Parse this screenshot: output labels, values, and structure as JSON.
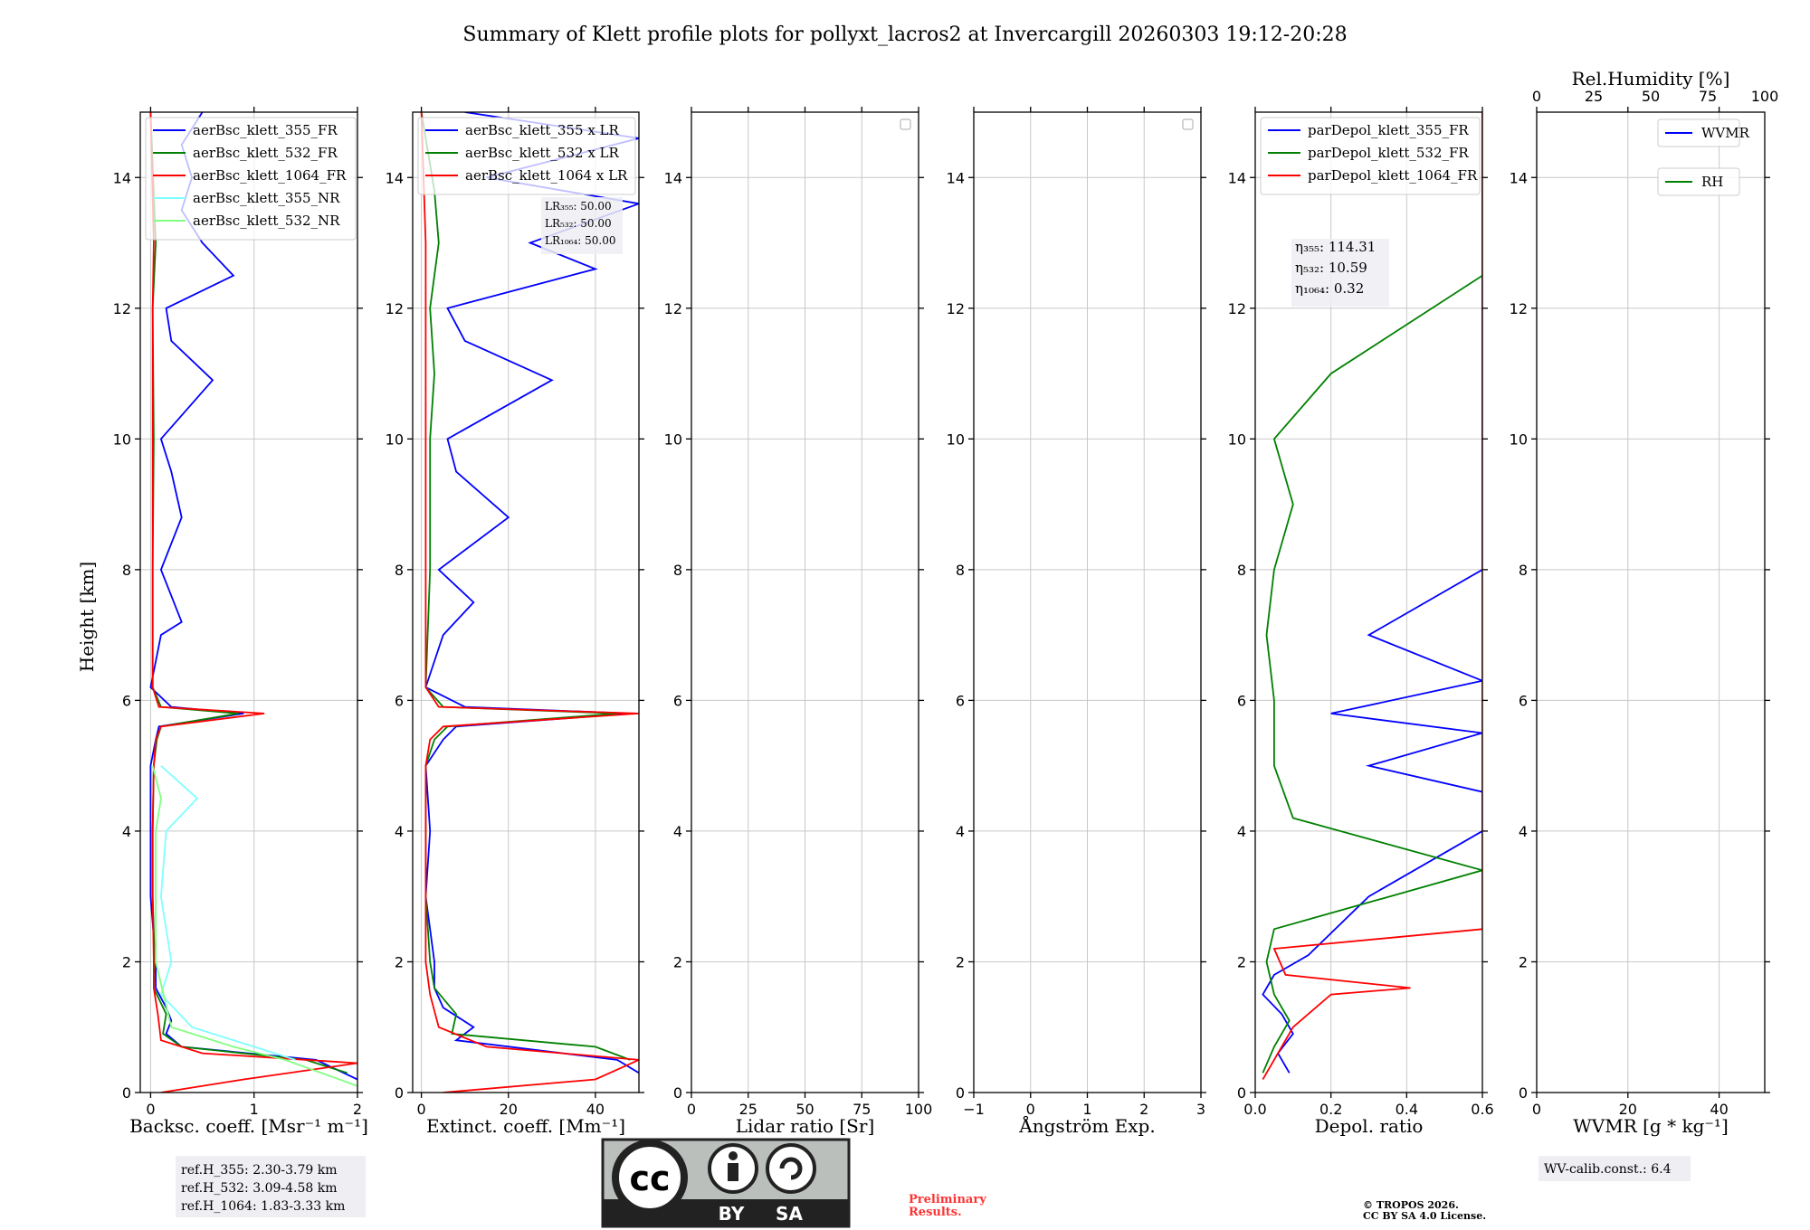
{
  "figure": {
    "title": "Summary of Klett profile plots for pollyxt_lacros2 at Invercargill 20260303 19:12-20:28",
    "ylabel": "Height [km]",
    "ylim": [
      0,
      15
    ],
    "yticks": [
      "0",
      "2",
      "4",
      "6",
      "8",
      "10",
      "12",
      "14"
    ]
  },
  "chart_data": [
    {
      "type": "line",
      "panel": "backscatter",
      "xlabel": "Backsc. coeff. [Msr⁻¹ m⁻¹]",
      "xlim": [
        -0.1,
        2
      ],
      "xticks": [
        {
          "v": 0,
          "t": "0"
        },
        {
          "v": 1,
          "t": "1"
        },
        {
          "v": 2,
          "t": "2"
        }
      ],
      "legend": [
        {
          "label": "aerBsc_klett_355_FR",
          "color": "#0000ff"
        },
        {
          "label": "aerBsc_klett_532_FR",
          "color": "#008000"
        },
        {
          "label": "aerBsc_klett_1064_FR",
          "color": "#ff0000"
        },
        {
          "label": "aerBsc_klett_355_NR",
          "color": "#7fffff"
        },
        {
          "label": "aerBsc_klett_532_NR",
          "color": "#80ff80"
        }
      ],
      "series": [
        {
          "name": "aerBsc_klett_355_FR",
          "color": "#0000ff",
          "h": [
            0.2,
            0.5,
            0.7,
            0.9,
            1.1,
            1.3,
            1.6,
            2.0,
            3.0,
            4.0,
            5.0,
            5.4,
            5.6,
            5.8,
            5.9,
            6.2,
            7.0,
            7.2,
            8.0,
            8.8,
            9.5,
            10.0,
            10.9,
            11.5,
            12.0,
            12.5,
            13.0,
            13.5,
            14.0,
            14.5,
            15.0
          ],
          "x": [
            2.0,
            1.6,
            0.3,
            0.15,
            0.2,
            0.15,
            0.05,
            0.05,
            0.0,
            0.0,
            0.0,
            0.05,
            0.08,
            0.9,
            0.2,
            0.0,
            0.1,
            0.3,
            0.1,
            0.3,
            0.2,
            0.1,
            0.6,
            0.2,
            0.15,
            0.8,
            0.5,
            0.3,
            0.4,
            0.3,
            0.5
          ]
        },
        {
          "name": "aerBsc_klett_532_FR",
          "color": "#008000",
          "h": [
            0.3,
            0.5,
            0.7,
            0.9,
            1.2,
            1.6,
            2.0,
            3.0,
            4.0,
            5.0,
            5.4,
            5.6,
            5.8,
            5.9,
            6.2,
            8.0,
            10.0,
            12.0,
            13.0,
            15.0
          ],
          "x": [
            1.9,
            1.5,
            0.3,
            0.12,
            0.15,
            0.03,
            0.04,
            0.02,
            0.02,
            0.03,
            0.06,
            0.1,
            0.85,
            0.1,
            0.02,
            0.02,
            0.03,
            0.02,
            0.05,
            0.0
          ]
        },
        {
          "name": "aerBsc_klett_1064_FR",
          "color": "#ff0000",
          "h": [
            0.0,
            0.2,
            0.45,
            0.6,
            0.8,
            1.2,
            1.6,
            2.0,
            3.0,
            4.0,
            5.0,
            5.4,
            5.6,
            5.8,
            5.9,
            6.2,
            8.0,
            10.0,
            12.0,
            13.0,
            15.0
          ],
          "x": [
            0.1,
            0.9,
            2.0,
            0.5,
            0.1,
            0.07,
            0.03,
            0.03,
            0.02,
            0.02,
            0.03,
            0.05,
            0.1,
            1.1,
            0.08,
            0.02,
            0.02,
            0.02,
            0.02,
            0.03,
            0.0
          ]
        },
        {
          "name": "aerBsc_klett_355_NR",
          "color": "#7fffff",
          "h": [
            0.5,
            0.7,
            1.0,
            1.5,
            2.0,
            3.0,
            4.0,
            4.5,
            5.0
          ],
          "x": [
            1.4,
            1.0,
            0.4,
            0.1,
            0.2,
            0.1,
            0.15,
            0.45,
            0.1
          ]
        },
        {
          "name": "aerBsc_klett_532_NR",
          "color": "#80ff80",
          "h": [
            0.1,
            0.5,
            0.7,
            1.0,
            2.0,
            3.0,
            4.0,
            4.5,
            5.0
          ],
          "x": [
            2.0,
            1.3,
            0.8,
            0.2,
            0.05,
            0.05,
            0.05,
            0.1,
            0.02
          ]
        }
      ]
    },
    {
      "type": "line",
      "panel": "extinction",
      "xlabel": "Extinct. coeff. [Mm⁻¹]",
      "xlim": [
        -2,
        50
      ],
      "xticks": [
        {
          "v": 0,
          "t": "0"
        },
        {
          "v": 20,
          "t": "20"
        },
        {
          "v": 40,
          "t": "40"
        }
      ],
      "legend": [
        {
          "label": "aerBsc_klett_355 x LR",
          "color": "#0000ff"
        },
        {
          "label": "aerBsc_klett_532 x LR",
          "color": "#008000"
        },
        {
          "label": "aerBsc_klett_1064 x LR",
          "color": "#ff0000"
        }
      ],
      "series": [
        {
          "name": "aerBsc_klett_355 x LR",
          "color": "#0000ff",
          "h": [
            0.3,
            0.5,
            0.8,
            1.0,
            1.3,
            1.6,
            2.0,
            3.0,
            4.0,
            5.0,
            5.4,
            5.6,
            5.8,
            5.9,
            6.2,
            7.0,
            7.5,
            8.0,
            8.8,
            9.5,
            10.0,
            10.9,
            11.5,
            12.0,
            12.6,
            13.0,
            13.6,
            14.0,
            14.6,
            15.0
          ],
          "x": [
            50,
            45,
            8,
            12,
            5,
            3,
            3,
            1,
            2,
            1,
            5,
            8,
            48,
            10,
            1,
            5,
            12,
            4,
            20,
            8,
            6,
            30,
            10,
            6,
            40,
            25,
            50,
            15,
            50,
            10
          ]
        },
        {
          "name": "aerBsc_klett_532 x LR",
          "color": "#008000",
          "h": [
            0.5,
            0.7,
            0.9,
            1.2,
            1.6,
            2.0,
            3.0,
            4.0,
            5.0,
            5.4,
            5.6,
            5.8,
            5.9,
            6.2,
            8.0,
            10.0,
            11.0,
            12.0,
            13.0,
            13.8,
            15.0
          ],
          "x": [
            48,
            40,
            7,
            8,
            3,
            2,
            1,
            1,
            1,
            3,
            6,
            45,
            5,
            1,
            2,
            2,
            3,
            2,
            4,
            3,
            0
          ]
        },
        {
          "name": "aerBsc_klett_1064 x LR",
          "color": "#ff0000",
          "h": [
            0.0,
            0.2,
            0.5,
            0.7,
            1.0,
            1.5,
            2.0,
            3.0,
            4.0,
            5.0,
            5.4,
            5.6,
            5.8,
            5.9,
            6.2,
            8.0,
            10.0,
            12.0,
            13.0,
            15.0
          ],
          "x": [
            5,
            40,
            50,
            15,
            4,
            2,
            1,
            1,
            1,
            1,
            2,
            5,
            50,
            4,
            1,
            1,
            1,
            1,
            1,
            0
          ]
        }
      ],
      "annotation": [
        "LR₃₅₅: 50.00",
        "LR₅₃₂: 50.00",
        "LR₁₀₆₄: 50.00"
      ]
    },
    {
      "type": "line",
      "panel": "lidar-ratio",
      "xlabel": "Lidar ratio [Sr]",
      "xlim": [
        0,
        100
      ],
      "xticks": [
        {
          "v": 0,
          "t": "0"
        },
        {
          "v": 25,
          "t": "25"
        },
        {
          "v": 50,
          "t": "50"
        },
        {
          "v": 75,
          "t": "75"
        },
        {
          "v": 100,
          "t": "100"
        }
      ],
      "series": []
    },
    {
      "type": "line",
      "panel": "angstrom",
      "xlabel": "Ångström Exp.",
      "xlim": [
        -1,
        3
      ],
      "xticks": [
        {
          "v": -1,
          "t": "−1"
        },
        {
          "v": 0,
          "t": "0"
        },
        {
          "v": 1,
          "t": "1"
        },
        {
          "v": 2,
          "t": "2"
        },
        {
          "v": 3,
          "t": "3"
        }
      ],
      "series": []
    },
    {
      "type": "line",
      "panel": "depol",
      "xlabel": "Depol. ratio",
      "xlim": [
        0,
        0.6
      ],
      "xticks": [
        {
          "v": 0,
          "t": "0.0"
        },
        {
          "v": 0.2,
          "t": "0.2"
        },
        {
          "v": 0.4,
          "t": "0.4"
        },
        {
          "v": 0.6,
          "t": "0.6"
        }
      ],
      "legend": [
        {
          "label": "parDepol_klett_355_FR",
          "color": "#0000ff"
        },
        {
          "label": "parDepol_klett_532_FR",
          "color": "#008000"
        },
        {
          "label": "parDepol_klett_1064_FR",
          "color": "#ff0000"
        }
      ],
      "series": [
        {
          "name": "parDepol_klett_355_FR",
          "color": "#0000ff",
          "h": [
            0.3,
            0.6,
            0.9,
            1.2,
            1.5,
            1.8,
            2.1,
            3.0,
            4.0,
            4.6,
            5.0,
            5.5,
            5.8,
            6.3,
            7.0,
            8.0,
            9.0,
            10.0,
            11.0,
            12.0,
            13.0,
            14.0,
            15.0
          ],
          "x": [
            0.09,
            0.06,
            0.1,
            0.07,
            0.02,
            0.05,
            0.14,
            0.3,
            0.6,
            0.6,
            0.3,
            0.6,
            0.2,
            0.6,
            0.3,
            0.6,
            0.6,
            0.6,
            0.6,
            0.6,
            0.6,
            0.6,
            0.6
          ]
        },
        {
          "name": "parDepol_klett_532_FR",
          "color": "#008000",
          "h": [
            0.3,
            0.7,
            1.1,
            1.5,
            2.0,
            2.5,
            3.4,
            4.2,
            5.0,
            6.0,
            7.0,
            8.0,
            9.0,
            10.0,
            11.0,
            12.5,
            13.5,
            14.5,
            15.0
          ],
          "x": [
            0.02,
            0.05,
            0.09,
            0.05,
            0.03,
            0.05,
            0.6,
            0.1,
            0.05,
            0.05,
            0.03,
            0.05,
            0.1,
            0.05,
            0.2,
            0.6,
            0.6,
            0.6,
            0.6
          ]
        },
        {
          "name": "parDepol_klett_1064_FR",
          "color": "#ff0000",
          "h": [
            0.2,
            0.6,
            1.0,
            1.5,
            1.6,
            1.8,
            2.2,
            2.5,
            3.0,
            3.5,
            4.0,
            4.5,
            5.0,
            6.0,
            7.0,
            8.0,
            9.0,
            10.0,
            11.0,
            12.0,
            13.0,
            14.0,
            15.0
          ],
          "x": [
            0.02,
            0.06,
            0.1,
            0.2,
            0.41,
            0.08,
            0.05,
            0.6,
            0.6,
            0.6,
            0.6,
            0.6,
            0.6,
            0.6,
            0.6,
            0.6,
            0.6,
            0.6,
            0.6,
            0.6,
            0.6,
            0.6,
            0.6
          ]
        }
      ],
      "annotation": [
        "η₃₅₅: 114.31",
        "η₅₃₂: 10.59",
        "η₁₀₆₄: 0.32"
      ]
    },
    {
      "type": "line",
      "panel": "wvmr",
      "xlabel": "WVMR [g * kg⁻¹]",
      "xlim": [
        0,
        50
      ],
      "xticks": [
        {
          "v": 0,
          "t": "0"
        },
        {
          "v": 20,
          "t": "20"
        },
        {
          "v": 40,
          "t": "40"
        }
      ],
      "top_xlabel": "Rel.Humidity [%]",
      "top_xlim": [
        0,
        100
      ],
      "top_xticks": [
        {
          "v": 0,
          "t": "0"
        },
        {
          "v": 25,
          "t": "25"
        },
        {
          "v": 50,
          "t": "50"
        },
        {
          "v": 75,
          "t": "75"
        },
        {
          "v": 100,
          "t": "100"
        }
      ],
      "legend": [
        {
          "label": "WVMR",
          "color": "#0000ff"
        },
        {
          "label": "RH",
          "color": "#008000"
        }
      ],
      "series": []
    }
  ],
  "ref_heights": [
    "ref.H_355: 2.30-3.79 km",
    "ref.H_532: 3.09-4.58 km",
    "ref.H_1064: 1.83-3.33 km"
  ],
  "license_badge": {
    "cc": "cc",
    "by": "BY",
    "sa": "SA"
  },
  "preliminary": [
    "Preliminary",
    "Results."
  ],
  "copyright": [
    "© TROPOS 2026.",
    "CC BY SA 4.0 License."
  ],
  "wv_calib": "WV-calib.const.: 6.4"
}
